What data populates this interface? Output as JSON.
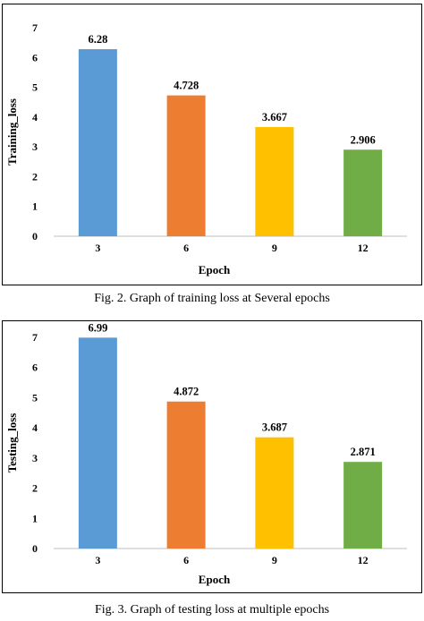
{
  "chart_data": [
    {
      "type": "bar",
      "categories": [
        "3",
        "6",
        "9",
        "12"
      ],
      "values": [
        6.28,
        4.728,
        3.667,
        2.906
      ],
      "value_labels": [
        "6.28",
        "4.728",
        "3.667",
        "2.906"
      ],
      "xlabel": "Epoch",
      "ylabel": "Training_loss",
      "ylim": [
        0,
        7
      ],
      "yticks": [
        0,
        1,
        2,
        3,
        4,
        5,
        6,
        7
      ],
      "colors": [
        "#5b9bd5",
        "#ed7d31",
        "#ffc000",
        "#70ad47"
      ],
      "grid": false,
      "legend": "none",
      "caption": "Fig. 2. Graph of training loss at  Several epochs"
    },
    {
      "type": "bar",
      "categories": [
        "3",
        "6",
        "9",
        "12"
      ],
      "values": [
        6.99,
        4.872,
        3.687,
        2.871
      ],
      "value_labels": [
        "6.99",
        "4.872",
        "3.687",
        "2.871"
      ],
      "xlabel": "Epoch",
      "ylabel": "Testing_loss",
      "ylim": [
        0,
        7
      ],
      "yticks": [
        0,
        1,
        2,
        3,
        4,
        5,
        6,
        7
      ],
      "colors": [
        "#5b9bd5",
        "#ed7d31",
        "#ffc000",
        "#70ad47"
      ],
      "grid": false,
      "legend": "none",
      "caption": "Fig. 3. Graph of testing loss at multiple epochs"
    }
  ]
}
